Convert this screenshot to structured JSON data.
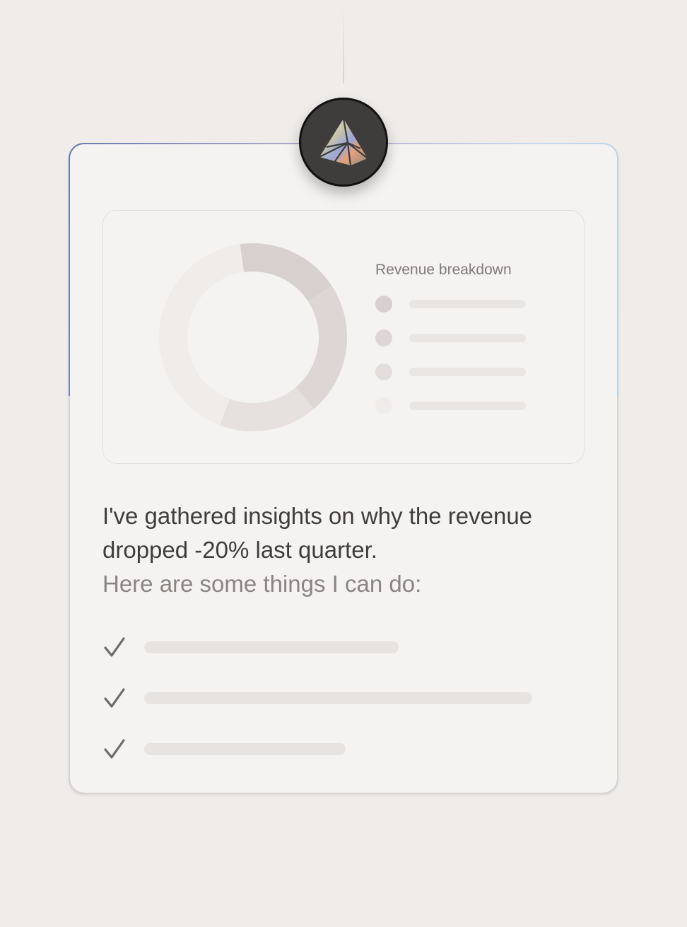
{
  "avatar": {
    "icon": "prism-pyramid-icon"
  },
  "chart_card": {
    "legend_title": "Revenue breakdown",
    "donut_slices_percent": [
      18,
      23,
      17,
      42
    ],
    "slice_colors": [
      "#d8d0ce",
      "#ddd6d4",
      "#e6e1df",
      "#efecea"
    ],
    "legend_dot_colors": [
      "#d8d0ce",
      "#ddd6d4",
      "#e3dedc",
      "#efecea"
    ]
  },
  "message": {
    "line1": "I've gathered insights on why the revenue dropped -20% last quarter.",
    "line2": "Here are some things I can do:"
  },
  "actions": {
    "icon": "checkmark-icon",
    "count": 3
  }
}
